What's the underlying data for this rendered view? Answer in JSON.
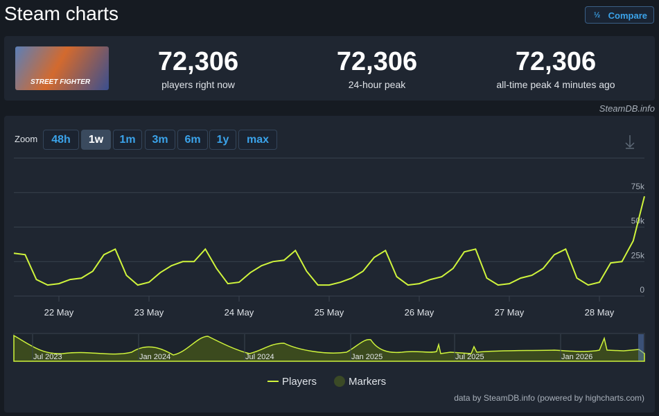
{
  "header": {
    "title": "Steam charts",
    "compare": "Compare"
  },
  "stats": {
    "game_image_text": "STREET FIGHTER",
    "items": [
      {
        "value": "72,306",
        "label": "players right now"
      },
      {
        "value": "72,306",
        "label": "24-hour peak"
      },
      {
        "value": "72,306",
        "label": "all-time peak 4 minutes ago"
      }
    ],
    "source": "SteamDB.info"
  },
  "zoom": {
    "label": "Zoom",
    "options": [
      "48h",
      "1w",
      "1m",
      "3m",
      "6m",
      "1y",
      "max"
    ],
    "active": "1w"
  },
  "navigator": {
    "labels": [
      "Jul 2023",
      "Jan 2024",
      "Jul 2024",
      "Jan 2025",
      "Jul 2025",
      "Jan 2026"
    ]
  },
  "credit": "data by SteamDB.info (powered by highcharts.com)",
  "chart_data": {
    "type": "line",
    "categories": [
      null,
      null,
      null,
      null,
      "22 May",
      null,
      null,
      null,
      null,
      null,
      null,
      null,
      "23 May",
      null,
      null,
      null,
      null,
      null,
      null,
      null,
      "24 May",
      null,
      null,
      null,
      null,
      null,
      null,
      null,
      "25 May",
      null,
      null,
      null,
      null,
      null,
      null,
      null,
      "26 May",
      null,
      null,
      null,
      null,
      null,
      null,
      null,
      "27 May",
      null,
      null,
      null,
      null,
      null,
      null,
      null,
      "28 May",
      null,
      null,
      null,
      null
    ],
    "series": [
      {
        "name": "Players",
        "color": "#d0f53c",
        "values": [
          31000,
          30000,
          12000,
          8000,
          9000,
          12000,
          13000,
          18000,
          30000,
          34000,
          15000,
          8000,
          10000,
          17000,
          22000,
          25000,
          25000,
          34000,
          20000,
          9000,
          10000,
          17000,
          22000,
          25000,
          26000,
          33000,
          18000,
          8000,
          8000,
          10000,
          13000,
          18000,
          28000,
          33000,
          14000,
          8000,
          9000,
          12000,
          14000,
          20000,
          32000,
          34000,
          13000,
          8000,
          9000,
          13000,
          15000,
          20000,
          30000,
          34000,
          13000,
          8000,
          10000,
          24000,
          25000,
          40000,
          72306
        ]
      }
    ],
    "markers": {
      "name": "Markers",
      "color": "#3b4a26"
    },
    "ylim": [
      0,
      100000
    ],
    "yticks": [
      0,
      {
        "value": 25000,
        "label": "25k"
      },
      {
        "value": 50000,
        "label": "50k"
      },
      {
        "value": 75000,
        "label": "75k"
      }
    ],
    "grid": true
  }
}
